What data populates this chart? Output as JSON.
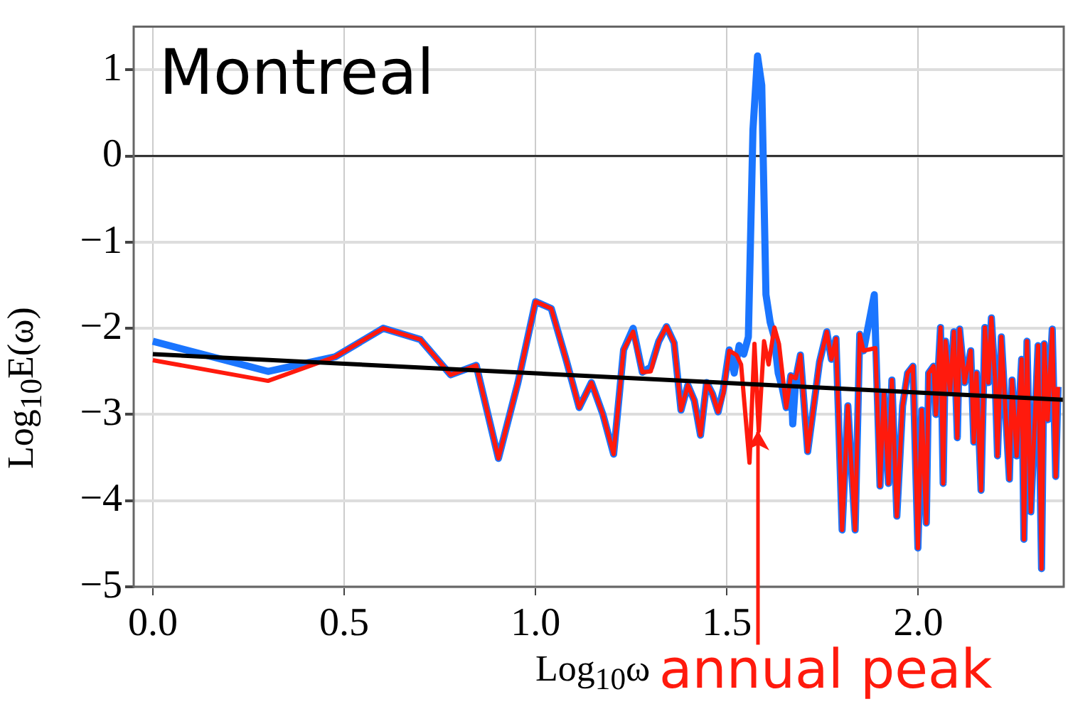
{
  "chart_data": {
    "type": "line",
    "title": "Montreal",
    "xlabel": "Log$_{10}$ω",
    "ylabel": "Log$_{10}$E(ω)",
    "xlim": [
      -0.05,
      2.38
    ],
    "ylim": [
      -5,
      1.5
    ],
    "xticks": [
      {
        "value": 0,
        "label": "0.0"
      },
      {
        "value": 0.5,
        "label": "0.5"
      },
      {
        "value": 1,
        "label": "1.0"
      },
      {
        "value": 1.5,
        "label": "1.5"
      },
      {
        "value": 2,
        "label": "2.0"
      }
    ],
    "yticks": [
      {
        "value": -5,
        "label": "−5"
      },
      {
        "value": -4,
        "label": "−4"
      },
      {
        "value": -3,
        "label": "−3"
      },
      {
        "value": -2,
        "label": "−2"
      },
      {
        "value": -1,
        "label": "−1"
      },
      0,
      1
    ],
    "grid": true,
    "legend": false,
    "marker": "none",
    "line_style": "solid",
    "ref_lines": [
      {
        "axis": "y",
        "value": 0,
        "color": "#333333"
      }
    ],
    "annotations": [
      {
        "text": "annual peak",
        "x": 1.583,
        "y": -3.19
      }
    ],
    "series": [
      {
        "color": "#1a75ff",
        "x": [
          0,
          0.301,
          0.477,
          0.602,
          0.699,
          0.778,
          0.845,
          0.903,
          0.954,
          1.0,
          1.041,
          1.079,
          1.114,
          1.146,
          1.176,
          1.204,
          1.23,
          1.255,
          1.279,
          1.301,
          1.322,
          1.342,
          1.362,
          1.38,
          1.398,
          1.415,
          1.431,
          1.447,
          1.462,
          1.477,
          1.491,
          1.506,
          1.519,
          1.532,
          1.544,
          1.556,
          1.568,
          1.58,
          1.591,
          1.602,
          1.613,
          1.623,
          1.634,
          1.644,
          1.655,
          1.667,
          1.672,
          1.68,
          1.692,
          1.711,
          1.742,
          1.761,
          1.773,
          1.785,
          1.801,
          1.816,
          1.835,
          1.847,
          1.857,
          1.885,
          1.9,
          1.91,
          1.922,
          1.931,
          1.944,
          1.959,
          1.972,
          1.986,
          1.999,
          2.009,
          2.021,
          2.027,
          2.04,
          2.046,
          2.058,
          2.065,
          2.071,
          2.083,
          2.093,
          2.102,
          2.108,
          2.121,
          2.137,
          2.145,
          2.152,
          2.164,
          2.174,
          2.183,
          2.191,
          2.201,
          2.207,
          2.217,
          2.226,
          2.238,
          2.245,
          2.257,
          2.27,
          2.276,
          2.284,
          2.294,
          2.313,
          2.322,
          2.329,
          2.338,
          2.35,
          2.359,
          2.365
        ],
        "values": [
          -2.15,
          -2.5,
          -2.33,
          -2.0,
          -2.13,
          -2.54,
          -2.43,
          -3.51,
          -2.63,
          -1.69,
          -1.77,
          -2.35,
          -2.92,
          -2.63,
          -3.0,
          -3.46,
          -2.25,
          -2.0,
          -2.51,
          -2.45,
          -2.15,
          -1.98,
          -2.17,
          -2.95,
          -2.66,
          -2.84,
          -3.24,
          -2.63,
          -2.76,
          -2.97,
          -2.7,
          -2.25,
          -2.52,
          -2.2,
          -2.3,
          -2.1,
          0.3,
          1.16,
          0.82,
          -1.61,
          -1.93,
          -2.09,
          -2.52,
          -2.68,
          -2.92,
          -2.55,
          -3.11,
          -2.58,
          -2.31,
          -3.43,
          -2.39,
          -2.04,
          -2.36,
          -2.12,
          -4.34,
          -2.9,
          -4.34,
          -2.07,
          -2.26,
          -1.61,
          -3.83,
          -2.74,
          -3.8,
          -2.6,
          -4.18,
          -2.9,
          -2.52,
          -2.44,
          -4.55,
          -2.95,
          -4.26,
          -2.52,
          -2.44,
          -3.0,
          -1.99,
          -3.8,
          -2.15,
          -2.74,
          -2.04,
          -3.27,
          -2.01,
          -2.63,
          -2.26,
          -3.32,
          -2.52,
          -3.88,
          -1.99,
          -2.63,
          -1.88,
          -2.63,
          -3.48,
          -2.1,
          -2.82,
          -3.75,
          -2.6,
          -3.48,
          -2.36,
          -4.45,
          -2.15,
          -4.13,
          -2.2,
          -4.79,
          -2.18,
          -3.06,
          -2.01,
          -3.72,
          -2.68
        ]
      },
      {
        "color": "#ff1a0d",
        "x": [
          0,
          0.301,
          0.477,
          0.602,
          0.699,
          0.778,
          0.845,
          0.903,
          0.954,
          1.0,
          1.041,
          1.079,
          1.114,
          1.146,
          1.176,
          1.204,
          1.23,
          1.255,
          1.279,
          1.301,
          1.322,
          1.342,
          1.362,
          1.38,
          1.398,
          1.415,
          1.431,
          1.447,
          1.462,
          1.477,
          1.491,
          1.506,
          1.525,
          1.537,
          1.559,
          1.572,
          1.583,
          1.597,
          1.609,
          1.624,
          1.636,
          1.655,
          1.667,
          1.68,
          1.692,
          1.711,
          1.742,
          1.761,
          1.773,
          1.785,
          1.801,
          1.816,
          1.835,
          1.847,
          1.857,
          1.888,
          1.9,
          1.91,
          1.922,
          1.931,
          1.944,
          1.959,
          1.972,
          1.986,
          1.999,
          2.009,
          2.021,
          2.027,
          2.04,
          2.046,
          2.058,
          2.065,
          2.071,
          2.083,
          2.093,
          2.102,
          2.108,
          2.121,
          2.137,
          2.145,
          2.152,
          2.164,
          2.174,
          2.183,
          2.191,
          2.201,
          2.207,
          2.217,
          2.226,
          2.238,
          2.245,
          2.257,
          2.27,
          2.276,
          2.284,
          2.294,
          2.313,
          2.322,
          2.329,
          2.338,
          2.35,
          2.359,
          2.365
        ],
        "values": [
          -2.37,
          -2.61,
          -2.33,
          -2.0,
          -2.13,
          -2.54,
          -2.43,
          -3.51,
          -2.63,
          -1.69,
          -1.77,
          -2.35,
          -2.92,
          -2.63,
          -3.0,
          -3.46,
          -2.25,
          -2.04,
          -2.51,
          -2.5,
          -2.15,
          -1.98,
          -2.17,
          -2.95,
          -2.66,
          -2.84,
          -3.24,
          -2.63,
          -2.76,
          -2.97,
          -2.75,
          -2.26,
          -2.31,
          -2.42,
          -3.56,
          -2.18,
          -3.19,
          -2.15,
          -2.42,
          -1.99,
          -2.18,
          -2.92,
          -2.55,
          -2.58,
          -2.31,
          -3.43,
          -2.39,
          -2.04,
          -2.36,
          -2.12,
          -4.34,
          -2.9,
          -4.34,
          -2.07,
          -2.26,
          -2.23,
          -3.83,
          -2.74,
          -3.8,
          -2.6,
          -4.18,
          -2.9,
          -2.52,
          -2.44,
          -4.55,
          -2.95,
          -4.26,
          -2.52,
          -2.44,
          -3.0,
          -1.99,
          -3.8,
          -2.15,
          -2.74,
          -2.04,
          -3.27,
          -2.01,
          -2.63,
          -2.26,
          -3.32,
          -2.52,
          -3.88,
          -1.99,
          -2.63,
          -1.88,
          -2.63,
          -3.48,
          -2.1,
          -2.82,
          -3.75,
          -2.6,
          -3.48,
          -2.36,
          -4.45,
          -2.15,
          -4.13,
          -2.2,
          -4.79,
          -2.18,
          -3.06,
          -2.01,
          -3.72,
          -2.68
        ]
      },
      {
        "color": "#000000",
        "x": [
          0,
          2.38
        ],
        "values": [
          -2.3,
          -2.83
        ]
      }
    ]
  }
}
